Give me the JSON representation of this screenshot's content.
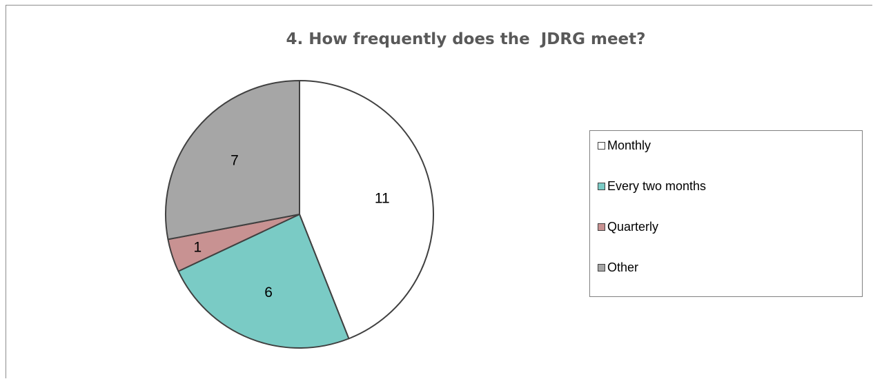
{
  "chart_data": {
    "type": "pie",
    "title": "4. How frequently does the  JDRG meet?",
    "categories": [
      "Monthly",
      "Every two months",
      "Quarterly",
      "Other"
    ],
    "values": [
      11,
      6,
      1,
      7
    ],
    "colors": [
      "#ffffff",
      "#7acbc5",
      "#c89292",
      "#a6a6a6"
    ],
    "slice_labels": [
      "11",
      "6",
      "1",
      "7"
    ],
    "legend_placement": "right",
    "start_angle": "12 o'clock",
    "direction": "clockwise"
  }
}
